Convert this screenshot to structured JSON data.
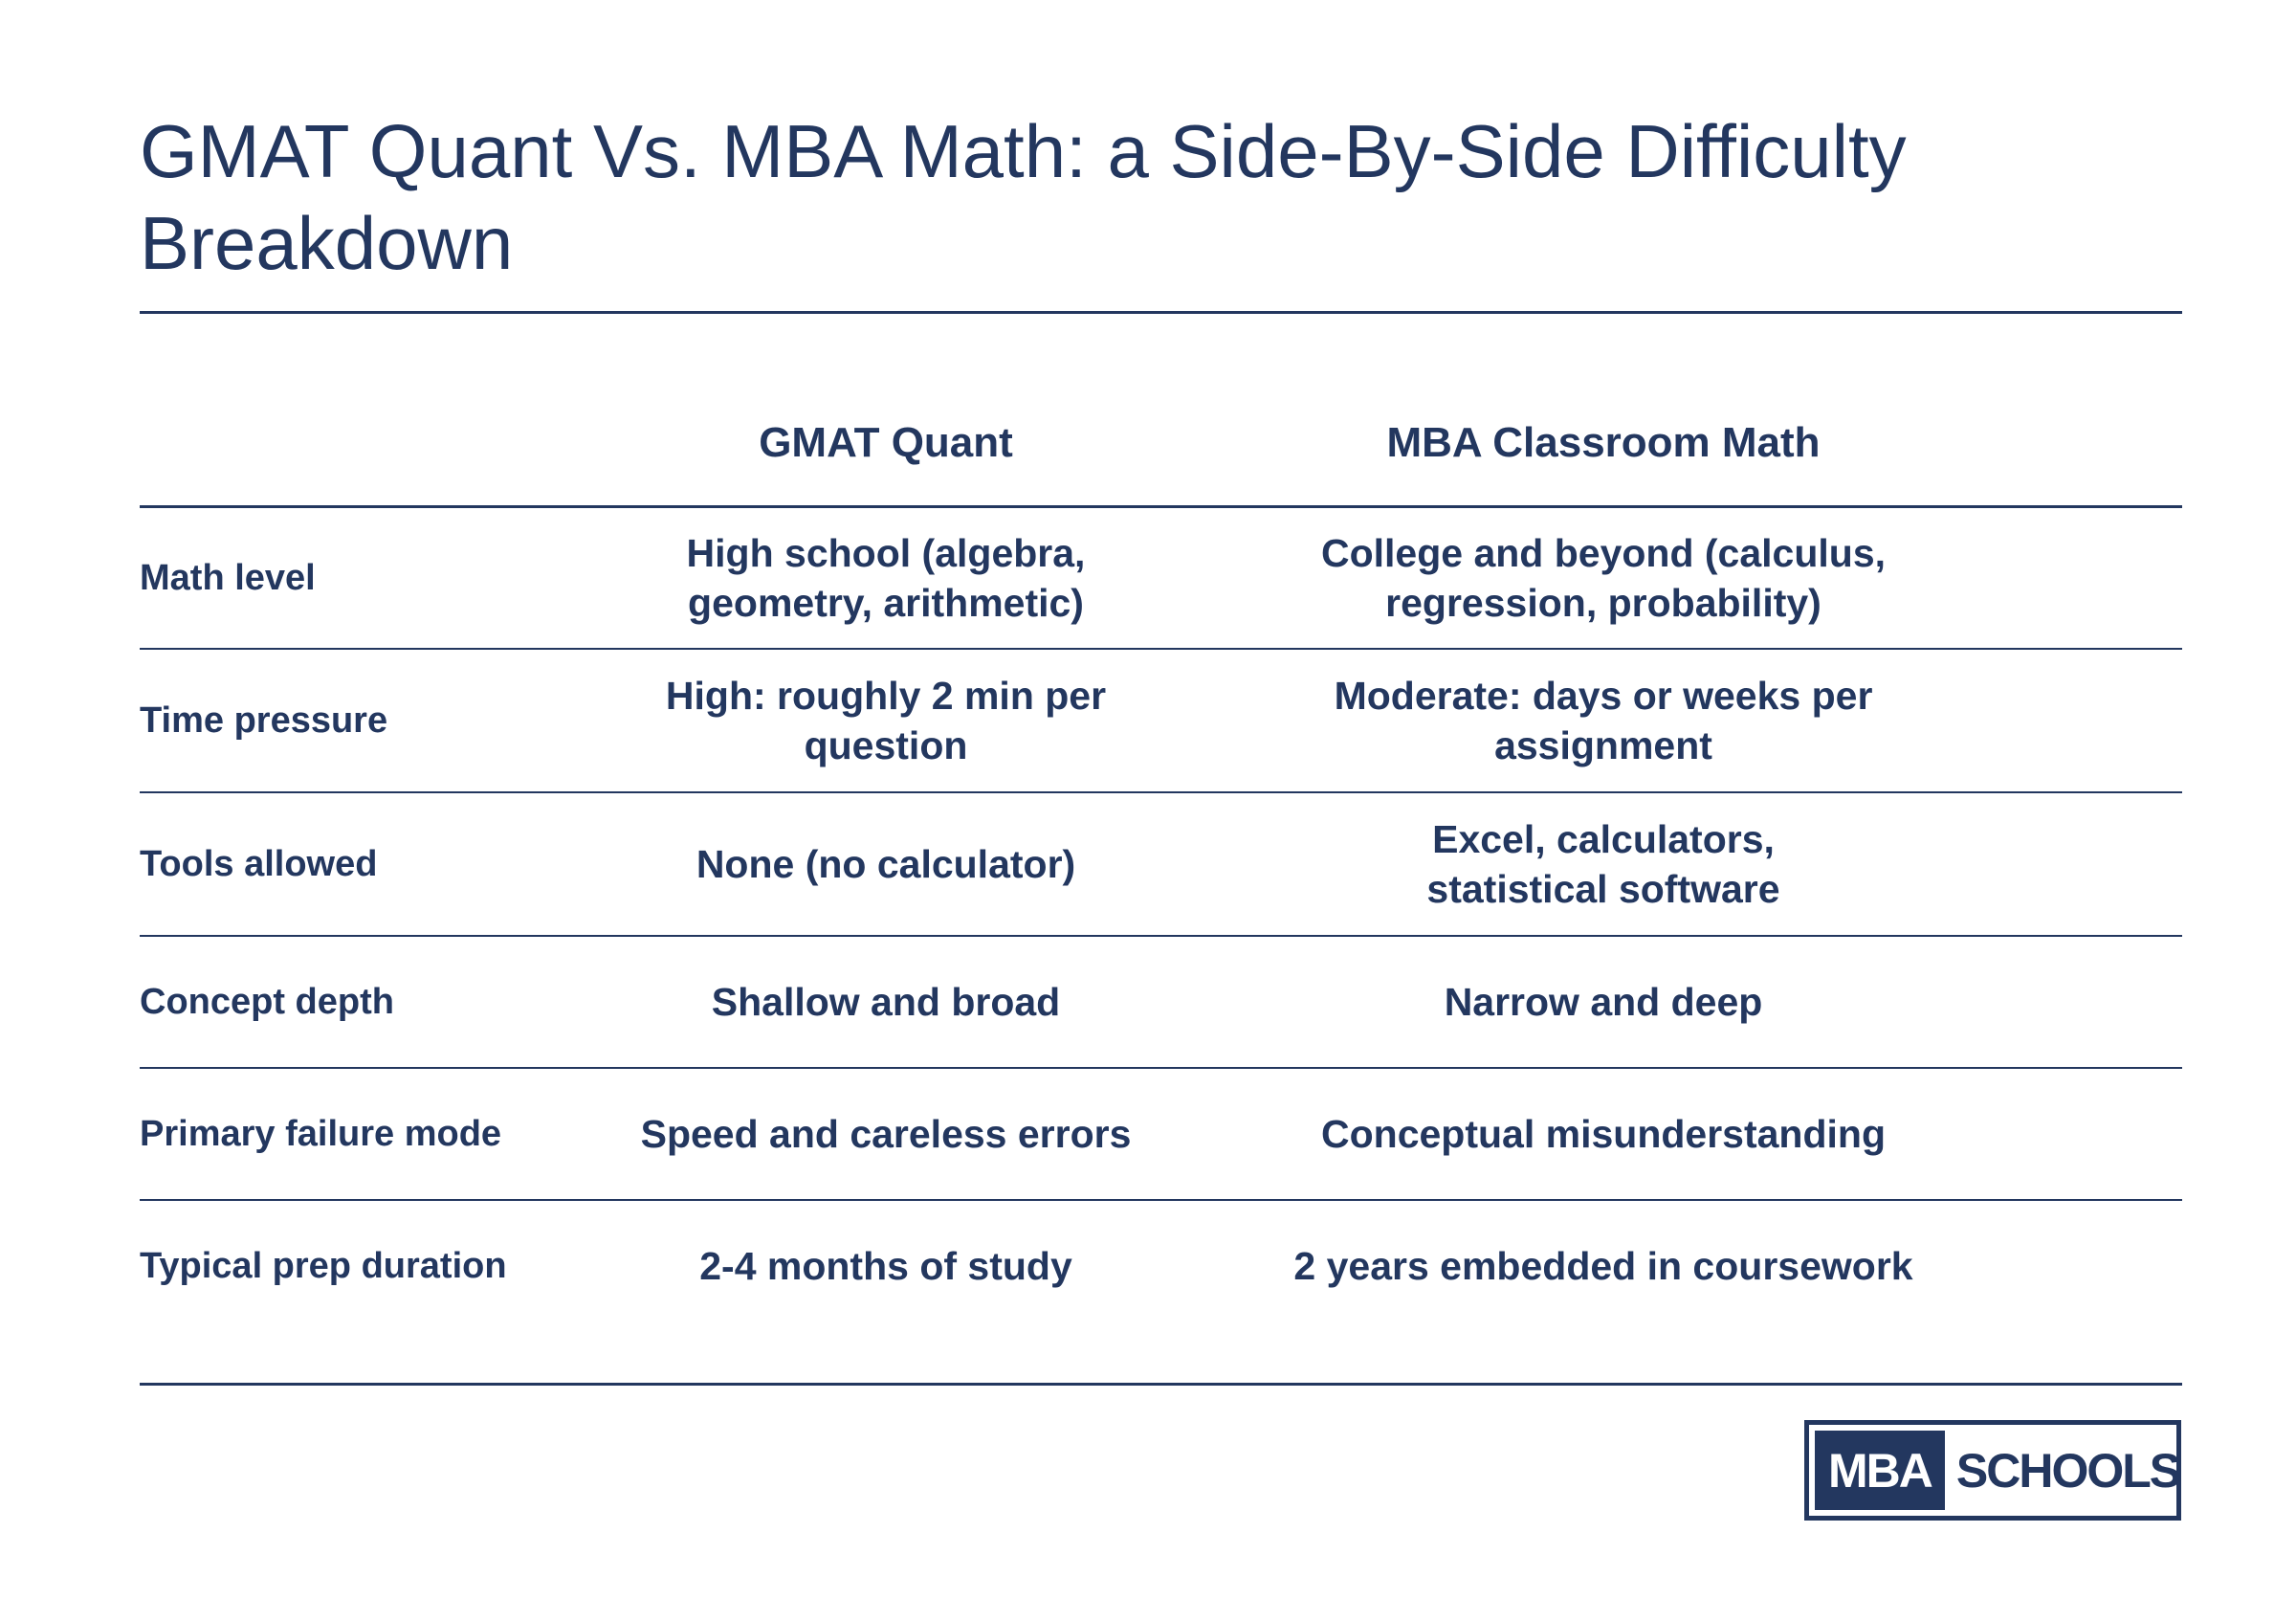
{
  "title": "GMAT Quant Vs. MBA Math: a Side-By-Side Difficulty Breakdown",
  "table": {
    "columns": [
      "GMAT Quant",
      "MBA Classroom Math"
    ],
    "rows": [
      {
        "label": "Math level",
        "gmat": "High school (algebra, geometry, arithmetic)",
        "mba": "College and beyond (calculus, regression, probability)"
      },
      {
        "label": "Time pressure",
        "gmat": "High: roughly 2 min per question",
        "mba": "Moderate: days or weeks per assignment"
      },
      {
        "label": "Tools allowed",
        "gmat": "None (no calculator)",
        "mba": "Excel, calculators, statistical software"
      },
      {
        "label": "Concept depth",
        "gmat": "Shallow and broad",
        "mba": "Narrow and deep"
      },
      {
        "label": "Primary failure mode",
        "gmat": "Speed and careless errors",
        "mba": "Conceptual misunderstanding"
      },
      {
        "label": "Typical prep duration",
        "gmat": "2-4 months of study",
        "mba": "2 years embedded in coursework"
      }
    ]
  },
  "logo": {
    "left": "MBA",
    "right": "SCHOOLS"
  },
  "colors": {
    "primary": "#23375f",
    "background": "#ffffff"
  }
}
